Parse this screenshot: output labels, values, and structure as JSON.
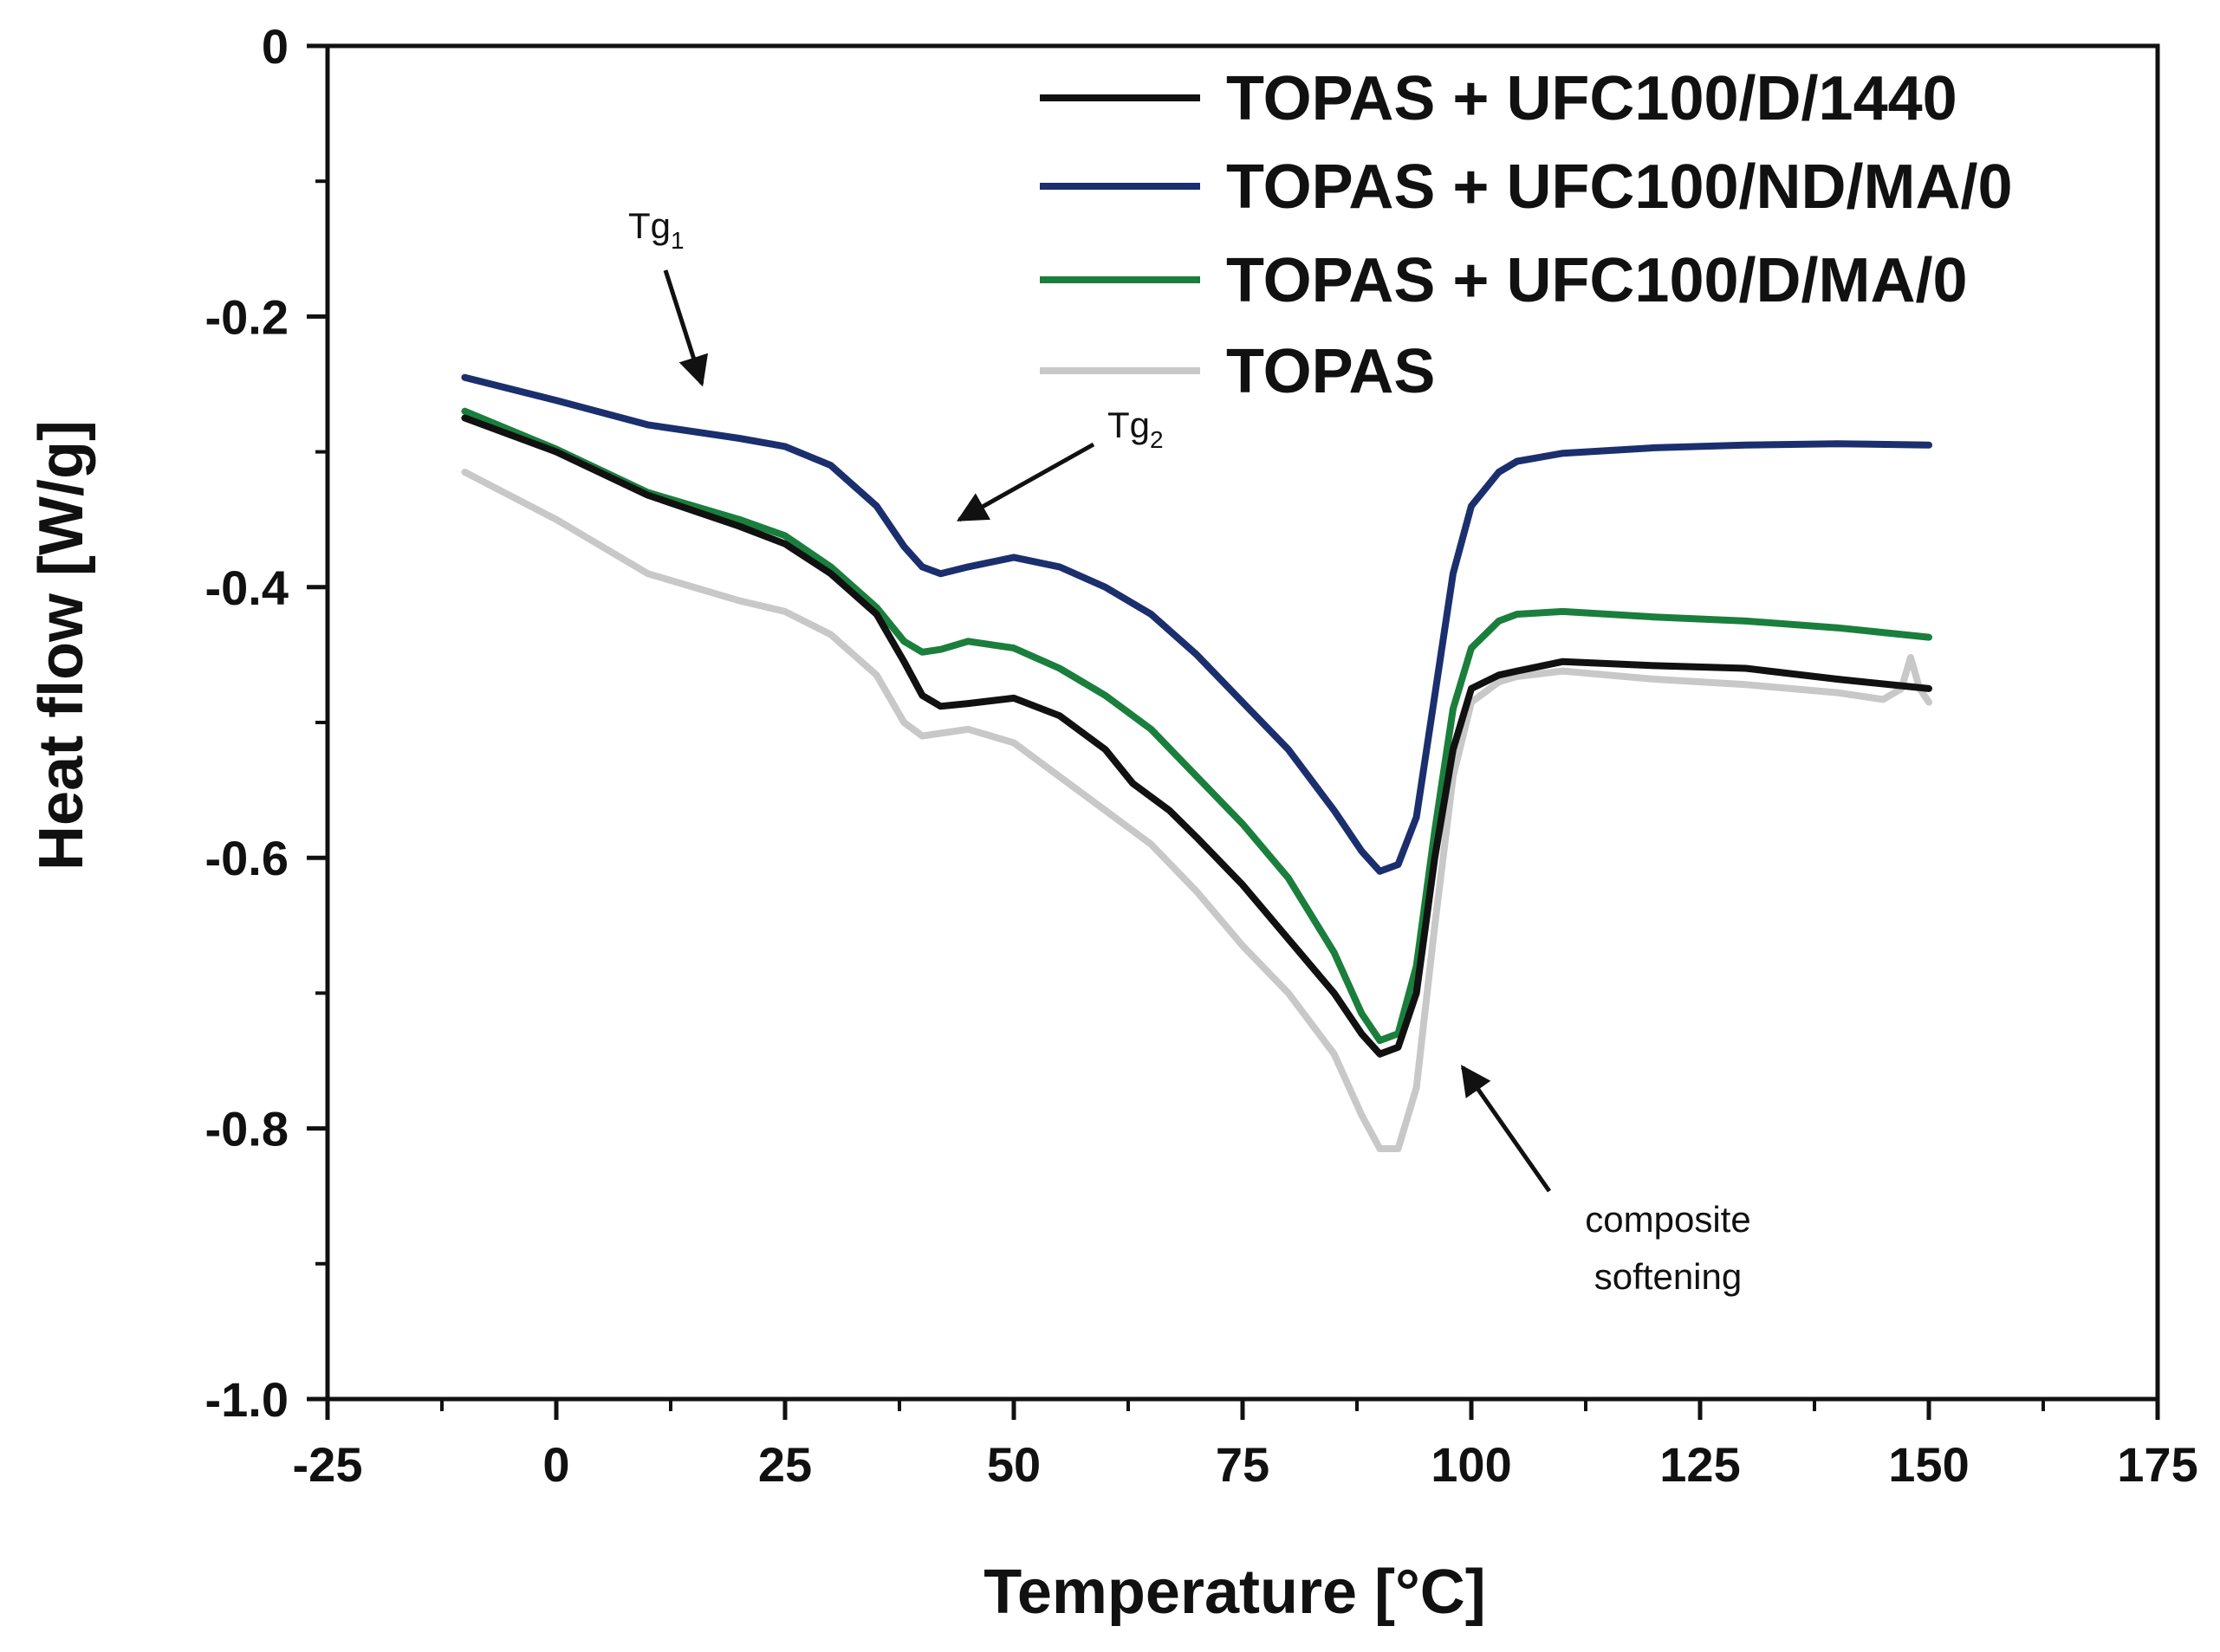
{
  "chart_data": {
    "type": "line",
    "title": "",
    "xlabel": "Temperature [°C]",
    "ylabel": "Heat flow [W/g]",
    "xlim": [
      -25,
      175
    ],
    "ylim": [
      -1.0,
      0
    ],
    "grid": false,
    "legend_position": "top-right",
    "x_ticks": [
      -25,
      0,
      25,
      50,
      75,
      100,
      125,
      150,
      175
    ],
    "x_tick_labels": [
      "-25",
      "0",
      "25",
      "50",
      "75",
      "100",
      "125",
      "150",
      "175"
    ],
    "y_ticks": [
      0,
      -0.2,
      -0.4,
      -0.6,
      -0.8,
      -1.0
    ],
    "y_tick_labels": [
      "0",
      "-0.2",
      "-0.4",
      "-0.6",
      "-0.8",
      "-1.0"
    ],
    "series": [
      {
        "name": "TOPAS + UFC100/D/1440",
        "color": "#111111",
        "points": [
          [
            -10,
            -0.275
          ],
          [
            0,
            -0.3
          ],
          [
            10,
            -0.332
          ],
          [
            20,
            -0.355
          ],
          [
            25,
            -0.368
          ],
          [
            30,
            -0.39
          ],
          [
            35,
            -0.42
          ],
          [
            38,
            -0.455
          ],
          [
            40,
            -0.48
          ],
          [
            42,
            -0.488
          ],
          [
            45,
            -0.486
          ],
          [
            50,
            -0.482
          ],
          [
            55,
            -0.495
          ],
          [
            60,
            -0.52
          ],
          [
            63,
            -0.545
          ],
          [
            67,
            -0.565
          ],
          [
            70,
            -0.585
          ],
          [
            75,
            -0.62
          ],
          [
            80,
            -0.66
          ],
          [
            85,
            -0.7
          ],
          [
            88,
            -0.73
          ],
          [
            90,
            -0.745
          ],
          [
            92,
            -0.74
          ],
          [
            94,
            -0.7
          ],
          [
            96,
            -0.6
          ],
          [
            98,
            -0.52
          ],
          [
            100,
            -0.475
          ],
          [
            103,
            -0.465
          ],
          [
            105,
            -0.462
          ],
          [
            110,
            -0.455
          ],
          [
            120,
            -0.458
          ],
          [
            130,
            -0.46
          ],
          [
            140,
            -0.468
          ],
          [
            150,
            -0.475
          ]
        ]
      },
      {
        "name": "TOPAS + UFC100/ND/MA/0",
        "color": "#1b2f6e",
        "points": [
          [
            -10,
            -0.245
          ],
          [
            0,
            -0.262
          ],
          [
            10,
            -0.28
          ],
          [
            20,
            -0.29
          ],
          [
            25,
            -0.296
          ],
          [
            30,
            -0.31
          ],
          [
            35,
            -0.34
          ],
          [
            38,
            -0.37
          ],
          [
            40,
            -0.385
          ],
          [
            42,
            -0.39
          ],
          [
            45,
            -0.385
          ],
          [
            50,
            -0.378
          ],
          [
            55,
            -0.385
          ],
          [
            60,
            -0.4
          ],
          [
            65,
            -0.42
          ],
          [
            70,
            -0.45
          ],
          [
            75,
            -0.485
          ],
          [
            80,
            -0.52
          ],
          [
            85,
            -0.565
          ],
          [
            88,
            -0.595
          ],
          [
            90,
            -0.61
          ],
          [
            92,
            -0.605
          ],
          [
            94,
            -0.57
          ],
          [
            96,
            -0.48
          ],
          [
            98,
            -0.39
          ],
          [
            100,
            -0.34
          ],
          [
            103,
            -0.315
          ],
          [
            105,
            -0.307
          ],
          [
            110,
            -0.301
          ],
          [
            120,
            -0.297
          ],
          [
            130,
            -0.295
          ],
          [
            140,
            -0.294
          ],
          [
            150,
            -0.295
          ]
        ]
      },
      {
        "name": "TOPAS + UFC100/D/MA/0",
        "color": "#1a7f3c",
        "points": [
          [
            -10,
            -0.27
          ],
          [
            0,
            -0.298
          ],
          [
            10,
            -0.33
          ],
          [
            20,
            -0.35
          ],
          [
            25,
            -0.362
          ],
          [
            30,
            -0.385
          ],
          [
            35,
            -0.415
          ],
          [
            38,
            -0.44
          ],
          [
            40,
            -0.448
          ],
          [
            42,
            -0.446
          ],
          [
            45,
            -0.44
          ],
          [
            50,
            -0.445
          ],
          [
            55,
            -0.46
          ],
          [
            60,
            -0.48
          ],
          [
            65,
            -0.505
          ],
          [
            70,
            -0.54
          ],
          [
            75,
            -0.575
          ],
          [
            80,
            -0.615
          ],
          [
            85,
            -0.67
          ],
          [
            88,
            -0.715
          ],
          [
            90,
            -0.735
          ],
          [
            92,
            -0.73
          ],
          [
            94,
            -0.68
          ],
          [
            96,
            -0.58
          ],
          [
            98,
            -0.49
          ],
          [
            100,
            -0.445
          ],
          [
            103,
            -0.425
          ],
          [
            105,
            -0.42
          ],
          [
            110,
            -0.418
          ],
          [
            120,
            -0.422
          ],
          [
            130,
            -0.425
          ],
          [
            140,
            -0.43
          ],
          [
            150,
            -0.437
          ]
        ]
      },
      {
        "name": "TOPAS",
        "color": "#c8c8c8",
        "points": [
          [
            -10,
            -0.315
          ],
          [
            0,
            -0.35
          ],
          [
            10,
            -0.39
          ],
          [
            20,
            -0.41
          ],
          [
            25,
            -0.418
          ],
          [
            30,
            -0.435
          ],
          [
            35,
            -0.465
          ],
          [
            38,
            -0.5
          ],
          [
            40,
            -0.51
          ],
          [
            42,
            -0.508
          ],
          [
            45,
            -0.505
          ],
          [
            50,
            -0.515
          ],
          [
            55,
            -0.54
          ],
          [
            60,
            -0.565
          ],
          [
            65,
            -0.59
          ],
          [
            70,
            -0.625
          ],
          [
            75,
            -0.665
          ],
          [
            80,
            -0.7
          ],
          [
            85,
            -0.745
          ],
          [
            88,
            -0.79
          ],
          [
            90,
            -0.815
          ],
          [
            92,
            -0.815
          ],
          [
            94,
            -0.77
          ],
          [
            96,
            -0.65
          ],
          [
            98,
            -0.54
          ],
          [
            100,
            -0.485
          ],
          [
            103,
            -0.47
          ],
          [
            105,
            -0.466
          ],
          [
            110,
            -0.462
          ],
          [
            120,
            -0.468
          ],
          [
            130,
            -0.472
          ],
          [
            140,
            -0.478
          ],
          [
            145,
            -0.483
          ],
          [
            147,
            -0.475
          ],
          [
            148,
            -0.452
          ],
          [
            149,
            -0.475
          ],
          [
            150,
            -0.485
          ]
        ]
      }
    ],
    "annotations": [
      {
        "text_main": "Tg",
        "text_sub": "1",
        "anchor": [
          16,
          -0.253
        ]
      },
      {
        "text_main": "Tg",
        "text_sub": "2",
        "anchor": [
          43.5,
          -0.352
        ]
      },
      {
        "text_lines": [
          "composite",
          "softening"
        ],
        "anchor": [
          98,
          -0.757
        ]
      }
    ]
  }
}
